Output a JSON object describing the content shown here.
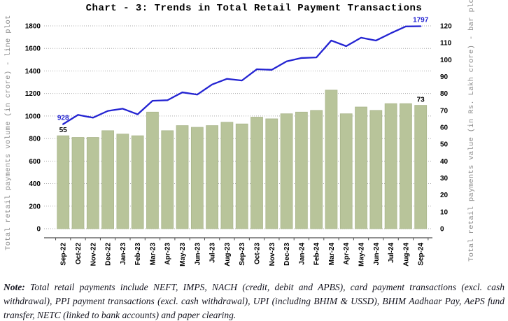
{
  "title": "Chart - 3: Trends in Total Retail Payment Transactions",
  "note": {
    "label": "Note:",
    "text": " Total retail payments include NEFT, IMPS, NACH (credit, debit and APBS), card payment transactions (excl. cash withdrawal), PPI payment transactions (excl. cash withdrawal), UPI (including BHIM & USSD), BHIM Aadhaar Pay, AePS fund transfer, NETC (linked to bank accounts) and paper clearing."
  },
  "chart_data": {
    "type": "line+bar combo, dual y-axis",
    "grid": "horizontal dotted gridlines (left-axis steps)",
    "legend": "none",
    "categories": [
      "Sep-22",
      "Oct-22",
      "Nov-22",
      "Dec-22",
      "Jan-23",
      "Feb-23",
      "Mar-23",
      "Apr-23",
      "May-23",
      "Jun-23",
      "Jul-23",
      "Aug-23",
      "Sep-23",
      "Oct-23",
      "Nov-23",
      "Dec-23",
      "Jan-24",
      "Feb-24",
      "Mar-24",
      "Apr-24",
      "May-24",
      "Jun-24",
      "Jul-24",
      "Aug-24",
      "Sep-24"
    ],
    "series": [
      {
        "name": "Total retail payments volume (in crore)",
        "type": "line",
        "axis": "left",
        "color": "#2424d2",
        "values": [
          928,
          1010,
          985,
          1045,
          1065,
          1015,
          1135,
          1140,
          1210,
          1190,
          1280,
          1330,
          1315,
          1415,
          1410,
          1485,
          1515,
          1520,
          1670,
          1620,
          1695,
          1670,
          1735,
          1795,
          1797
        ]
      },
      {
        "name": "Total retail payments value (in Rs. Lakh crore)",
        "type": "bar",
        "axis": "right",
        "color": "#b8c49a",
        "values": [
          55,
          54,
          54,
          58,
          56,
          55,
          69,
          58,
          61,
          60,
          61,
          63,
          62,
          66,
          65,
          68,
          69,
          70,
          82,
          68,
          72,
          70,
          74,
          74,
          73
        ]
      }
    ],
    "left_axis": {
      "title": "Total retail payments volume (in crore) - line plot",
      "min": 0,
      "max": 1800,
      "step": 200,
      "ticks": [
        0,
        200,
        400,
        600,
        800,
        1000,
        1200,
        1400,
        1600,
        1800
      ]
    },
    "right_axis": {
      "title": "Total retail payments value (in Rs. Lakh crore) - bar plot",
      "min": 0,
      "max": 120,
      "step": 10,
      "ticks": [
        0,
        10,
        20,
        30,
        40,
        50,
        60,
        70,
        80,
        90,
        100,
        110,
        120
      ]
    },
    "annotations": [
      {
        "text": "928",
        "series": 0,
        "index": 0,
        "color": "#2424d2"
      },
      {
        "text": "55",
        "series": 1,
        "index": 0,
        "color": "#000000"
      },
      {
        "text": "1797",
        "series": 0,
        "index": 24,
        "color": "#2424d2"
      },
      {
        "text": "73",
        "series": 1,
        "index": 24,
        "color": "#000000"
      }
    ],
    "colors": {
      "line": "#2424d2",
      "bar_fill": "#b8c49a",
      "bar_edge": "#a9b58b",
      "gridline": "#ababab",
      "axis_line": "#4d4d4d",
      "axis_title": "#8a8a8a",
      "tick_label": "#000000"
    }
  }
}
